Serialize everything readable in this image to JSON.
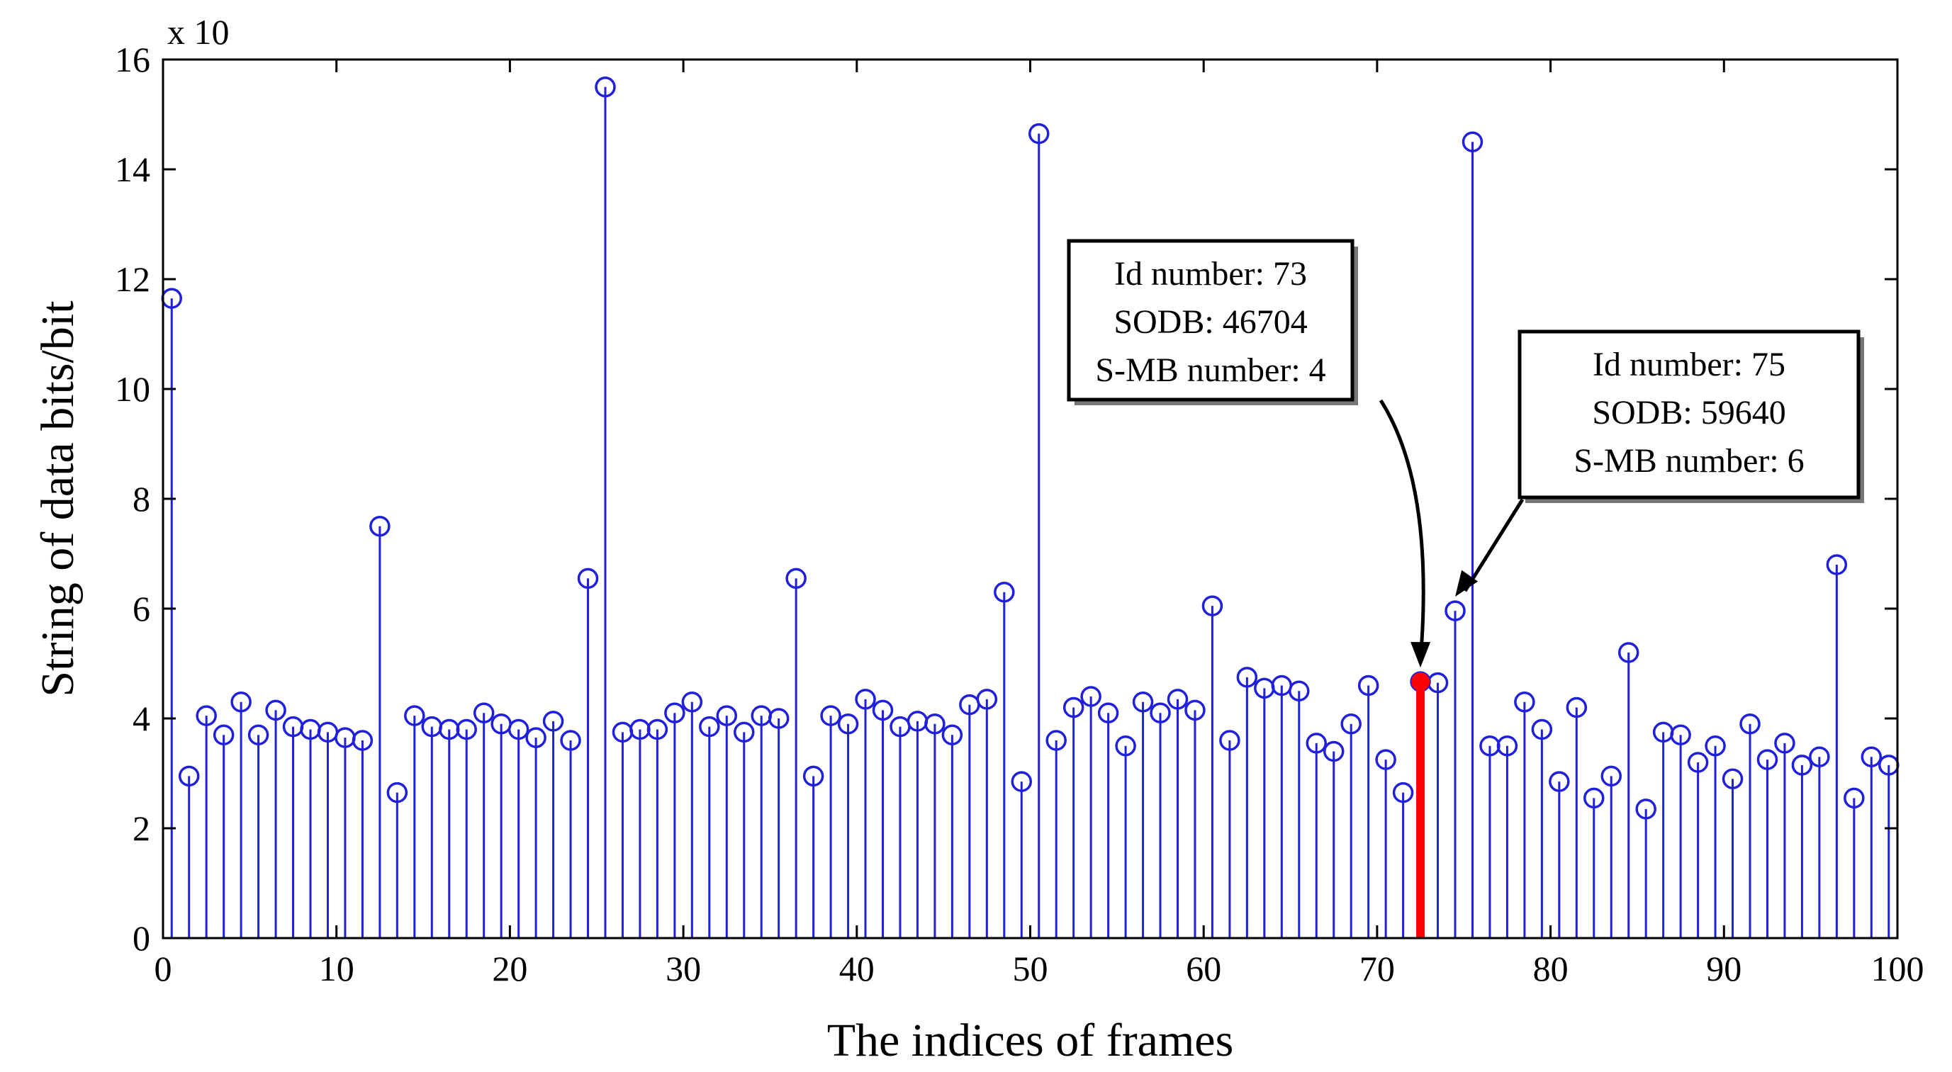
{
  "chart_data": {
    "type": "stem",
    "xlabel": "The indices of frames",
    "ylabel": "String of data bits/bit",
    "y_exponent_label": "x 10",
    "xlim": [
      0,
      100
    ],
    "ylim": [
      0,
      16
    ],
    "xticks": [
      0,
      10,
      20,
      30,
      40,
      50,
      60,
      70,
      80,
      90,
      100
    ],
    "yticks": [
      0,
      2,
      4,
      6,
      8,
      10,
      12,
      14,
      16
    ],
    "grid": false,
    "series": [
      {
        "color": "#1f1fdc",
        "x": [
          0.5,
          1.5,
          2.5,
          3.5,
          4.5,
          5.5,
          6.5,
          7.5,
          8.5,
          9.5,
          10.5,
          11.5,
          12.5,
          13.5,
          14.5,
          15.5,
          16.5,
          17.5,
          18.5,
          19.5,
          20.5,
          21.5,
          22.5,
          23.5,
          24.5,
          25.5,
          26.5,
          27.5,
          28.5,
          29.5,
          30.5,
          31.5,
          32.5,
          33.5,
          34.5,
          35.5,
          36.5,
          37.5,
          38.5,
          39.5,
          40.5,
          41.5,
          42.5,
          43.5,
          44.5,
          45.5,
          46.5,
          47.5,
          48.5,
          49.5,
          50.5,
          51.5,
          52.5,
          53.5,
          54.5,
          55.5,
          56.5,
          57.5,
          58.5,
          59.5,
          60.5,
          61.5,
          62.5,
          63.5,
          64.5,
          65.5,
          66.5,
          67.5,
          68.5,
          69.5,
          70.5,
          71.5,
          72.5,
          73.5,
          74.5,
          75.5,
          76.5,
          77.5,
          78.5,
          79.5,
          80.5,
          81.5,
          82.5,
          83.5,
          84.5,
          85.5,
          86.5,
          87.5,
          88.5,
          89.5,
          90.5,
          91.5,
          92.5,
          93.5,
          94.5,
          95.5,
          96.5,
          97.5,
          98.5,
          99.5
        ],
        "y": [
          11.65,
          2.95,
          4.05,
          3.7,
          4.3,
          3.7,
          4.15,
          3.85,
          3.8,
          3.75,
          3.65,
          3.6,
          7.5,
          2.65,
          4.05,
          3.85,
          3.8,
          3.8,
          4.1,
          3.9,
          3.8,
          3.65,
          3.95,
          3.6,
          6.55,
          15.5,
          3.75,
          3.8,
          3.8,
          4.1,
          4.3,
          3.85,
          4.05,
          3.75,
          4.05,
          4.0,
          6.55,
          2.95,
          4.05,
          3.9,
          4.35,
          4.15,
          3.85,
          3.95,
          3.9,
          3.7,
          4.25,
          4.35,
          6.3,
          2.85,
          14.65,
          3.6,
          4.2,
          4.4,
          4.1,
          3.5,
          4.3,
          4.1,
          4.35,
          4.15,
          6.05,
          3.6,
          4.75,
          4.55,
          4.6,
          4.5,
          3.55,
          3.4,
          3.9,
          4.6,
          3.25,
          2.65,
          4.67,
          4.65,
          5.96,
          14.5,
          3.5,
          3.5,
          4.3,
          3.8,
          2.85,
          4.2,
          2.55,
          2.95,
          5.2,
          2.35,
          3.75,
          3.7,
          3.2,
          3.5,
          2.9,
          3.9,
          3.25,
          3.55,
          3.15,
          3.3,
          6.8,
          2.55,
          3.3,
          3.15
        ]
      }
    ],
    "highlight": {
      "x": 72.5,
      "y": 4.67,
      "color": "#ff0000"
    },
    "annotations": [
      {
        "lines": [
          "Id number: 73",
          "SODB: 46704",
          "S-MB number: 4"
        ],
        "target": {
          "x": 72.5,
          "y": 4.67
        }
      },
      {
        "lines": [
          "Id number: 75",
          "SODB: 59640",
          "S-MB number: 6"
        ],
        "target": {
          "x": 74.5,
          "y": 5.96
        }
      }
    ]
  }
}
